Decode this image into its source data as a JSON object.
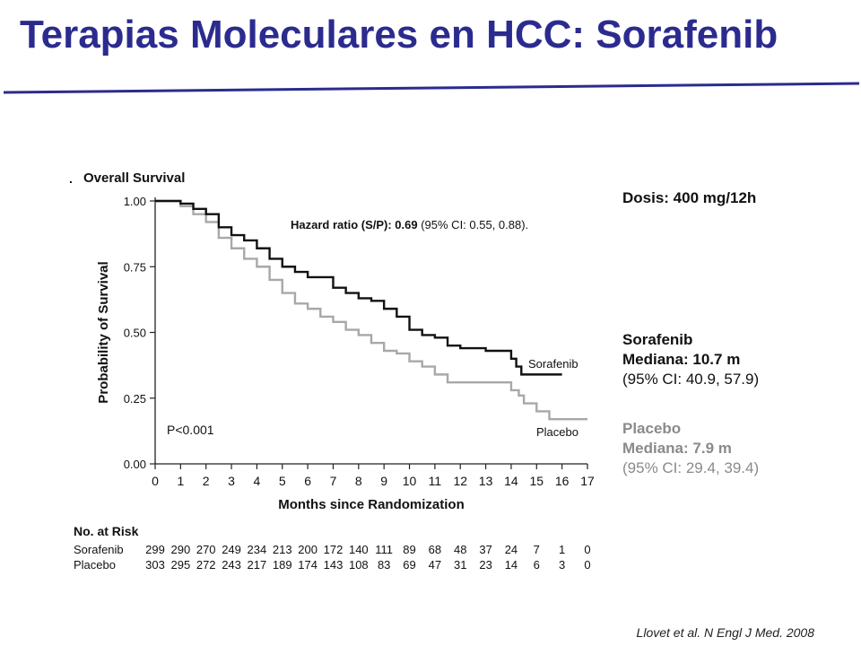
{
  "slide": {
    "title": "Terapias Moleculares en HCC: Sorafenib",
    "title_color": "#2b2b8f",
    "reference": "Llovet et al. N Engl J Med. 2008"
  },
  "hazard": {
    "label": "Hazard ratio (S/P): 0.69",
    "ci": " (95% CI: 0.55, 0.88)."
  },
  "side_panel": {
    "dose": "Dosis: 400 mg/12h",
    "sorafenib": {
      "name": "Sorafenib",
      "median": "Mediana: 10.7 m",
      "ci": "(95% CI: 40.9, 57.9)"
    },
    "placebo": {
      "name": "Placebo",
      "median": "Mediana: 7.9 m",
      "ci": "(95% CI: 29.4, 39.4)",
      "color": "#8a8a8a"
    }
  },
  "chart_data": {
    "type": "line",
    "panel_marker": ".",
    "title": "Overall Survival",
    "xlabel": "Months since Randomization",
    "ylabel": "Probability of Survival",
    "xlim": [
      0,
      17
    ],
    "ylim": [
      0,
      1
    ],
    "x_ticks": [
      "0",
      "1",
      "2",
      "3",
      "4",
      "5",
      "6",
      "7",
      "8",
      "9",
      "10",
      "11",
      "12",
      "13",
      "14",
      "15",
      "16",
      "17"
    ],
    "y_ticks": [
      "0.00",
      "0.25",
      "0.50",
      "0.75",
      "1.00"
    ],
    "p_value": "P<0.001",
    "series": [
      {
        "name": "Sorafenib",
        "color": "#111111",
        "step": [
          [
            0,
            1.0
          ],
          [
            0.5,
            1.0
          ],
          [
            1,
            0.99
          ],
          [
            1.5,
            0.97
          ],
          [
            2,
            0.95
          ],
          [
            2.5,
            0.9
          ],
          [
            3,
            0.87
          ],
          [
            3.5,
            0.85
          ],
          [
            4,
            0.82
          ],
          [
            4.5,
            0.78
          ],
          [
            5,
            0.75
          ],
          [
            5.5,
            0.73
          ],
          [
            6,
            0.71
          ],
          [
            7,
            0.67
          ],
          [
            7.5,
            0.65
          ],
          [
            8,
            0.63
          ],
          [
            8.5,
            0.62
          ],
          [
            9,
            0.59
          ],
          [
            9.5,
            0.56
          ],
          [
            10,
            0.51
          ],
          [
            10.5,
            0.49
          ],
          [
            11,
            0.48
          ],
          [
            11.5,
            0.45
          ],
          [
            12,
            0.44
          ],
          [
            13,
            0.43
          ],
          [
            13.5,
            0.43
          ],
          [
            14,
            0.4
          ],
          [
            14.2,
            0.37
          ],
          [
            14.4,
            0.34
          ],
          [
            15,
            0.34
          ],
          [
            16,
            0.34
          ]
        ]
      },
      {
        "name": "Placebo",
        "color": "#a8a8a8",
        "step": [
          [
            0,
            1.0
          ],
          [
            0.5,
            1.0
          ],
          [
            1,
            0.98
          ],
          [
            1.5,
            0.95
          ],
          [
            2,
            0.92
          ],
          [
            2.5,
            0.86
          ],
          [
            3,
            0.82
          ],
          [
            3.5,
            0.78
          ],
          [
            4,
            0.75
          ],
          [
            4.5,
            0.7
          ],
          [
            5,
            0.65
          ],
          [
            5.5,
            0.61
          ],
          [
            6,
            0.59
          ],
          [
            6.5,
            0.56
          ],
          [
            7,
            0.54
          ],
          [
            7.5,
            0.51
          ],
          [
            8,
            0.49
          ],
          [
            8.5,
            0.46
          ],
          [
            9,
            0.43
          ],
          [
            9.5,
            0.42
          ],
          [
            10,
            0.39
          ],
          [
            10.5,
            0.37
          ],
          [
            11,
            0.34
          ],
          [
            11.5,
            0.31
          ],
          [
            12,
            0.31
          ],
          [
            12.5,
            0.31
          ],
          [
            13,
            0.31
          ],
          [
            13.5,
            0.31
          ],
          [
            14,
            0.28
          ],
          [
            14.3,
            0.26
          ],
          [
            14.5,
            0.23
          ],
          [
            15,
            0.2
          ],
          [
            15.5,
            0.17
          ],
          [
            16,
            0.17
          ],
          [
            17,
            0.17
          ]
        ]
      }
    ],
    "risk_table": {
      "title": "No. at Risk",
      "rows": [
        {
          "label": "Sorafenib",
          "values": [
            "299",
            "290",
            "270",
            "249",
            "234",
            "213",
            "200",
            "172",
            "140",
            "111",
            "89",
            "68",
            "48",
            "37",
            "24",
            "7",
            "1",
            "0"
          ]
        },
        {
          "label": "Placebo",
          "values": [
            "303",
            "295",
            "272",
            "243",
            "217",
            "189",
            "174",
            "143",
            "108",
            "83",
            "69",
            "47",
            "31",
            "23",
            "14",
            "6",
            "3",
            "0"
          ]
        }
      ]
    }
  }
}
